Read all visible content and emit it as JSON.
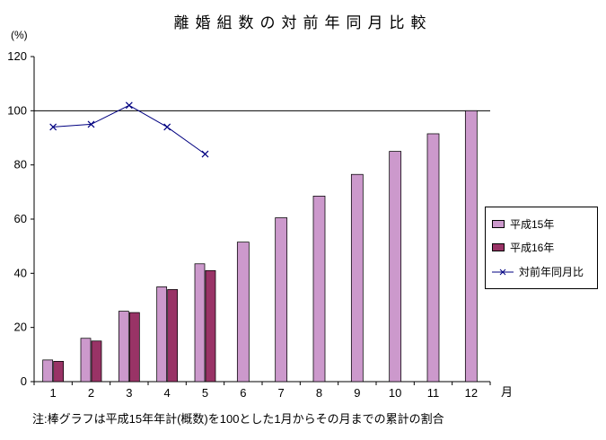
{
  "chart_data": {
    "type": "bar",
    "title": "離婚組数の対前年同月比較",
    "ylabel": "(%)",
    "xlabel": "月",
    "categories": [
      "1",
      "2",
      "3",
      "4",
      "5",
      "6",
      "7",
      "8",
      "9",
      "10",
      "11",
      "12"
    ],
    "ylim": [
      0,
      120
    ],
    "yticks": [
      0,
      20,
      40,
      60,
      80,
      100,
      120
    ],
    "reference_line": 100,
    "grid": false,
    "legend_position": "right",
    "series": [
      {
        "name": "平成15年",
        "type": "bar",
        "color": "#CC99CC",
        "values": [
          8,
          16,
          26,
          35,
          43.5,
          51.5,
          60.5,
          68.5,
          76.5,
          85,
          91.5,
          100
        ]
      },
      {
        "name": "平成16年",
        "type": "bar",
        "color": "#993366",
        "values": [
          7.5,
          15,
          25.5,
          34,
          41,
          null,
          null,
          null,
          null,
          null,
          null,
          null
        ]
      },
      {
        "name": "対前年同月比",
        "type": "line",
        "marker": "x",
        "color": "#000080",
        "values": [
          94,
          95,
          102,
          94,
          84,
          null,
          null,
          null,
          null,
          null,
          null,
          null
        ]
      }
    ],
    "note": "注:棒グラフは平成15年年計(概数)を100とした1月からその月までの累計の割合"
  }
}
